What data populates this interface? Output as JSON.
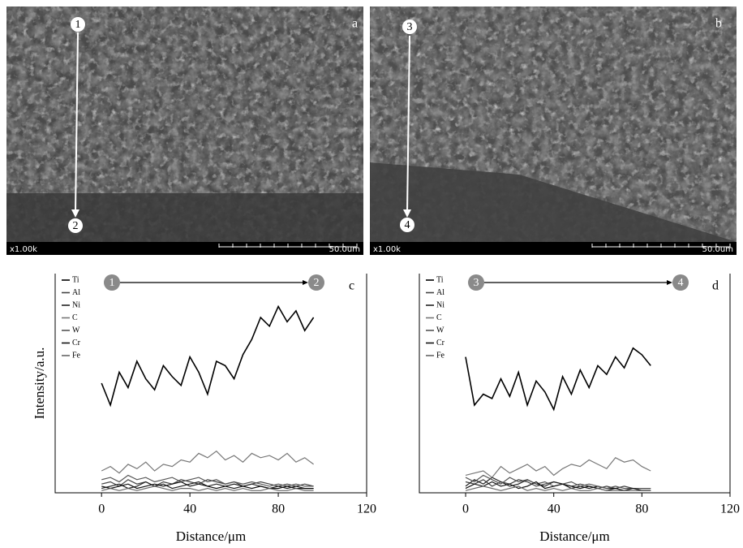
{
  "micrographs": [
    {
      "panel": "a",
      "start": "1",
      "end": "2",
      "magnification": "x1.00k",
      "scale": "50.0um"
    },
    {
      "panel": "b",
      "start": "3",
      "end": "4",
      "magnification": "x1.00k",
      "scale": "50.0um"
    }
  ],
  "chart_data": [
    {
      "type": "line",
      "panel": "c",
      "start_marker": "1",
      "end_marker": "2",
      "ylabel": "Intensity/a.u.",
      "xlabel": "Distance/μm",
      "xlim": [
        -21,
        120
      ],
      "xticks": [
        0,
        40,
        80,
        120
      ],
      "ylim": [
        0,
        100
      ],
      "x": [
        0,
        4,
        8,
        12,
        16,
        20,
        24,
        28,
        32,
        36,
        40,
        44,
        48,
        52,
        56,
        60,
        64,
        68,
        72,
        76,
        80,
        84,
        88,
        92,
        96
      ],
      "series": [
        {
          "name": "Ti",
          "color": "#000000",
          "values": [
            50,
            40,
            55,
            48,
            60,
            52,
            47,
            58,
            53,
            49,
            62,
            55,
            45,
            60,
            58,
            52,
            63,
            70,
            80,
            76,
            85,
            78,
            83,
            74,
            80
          ]
        },
        {
          "name": "Al",
          "color": "#444444",
          "values": [
            4,
            5,
            3,
            6,
            4,
            5,
            3,
            5,
            4,
            6,
            5,
            4,
            6,
            5,
            4,
            5,
            3,
            4,
            5,
            4,
            3,
            4,
            3,
            4,
            3
          ]
        },
        {
          "name": "Ni",
          "color": "#222222",
          "values": [
            2,
            3,
            4,
            2,
            3,
            5,
            3,
            4,
            2,
            3,
            4,
            5,
            3,
            4,
            3,
            2,
            3,
            4,
            3,
            2,
            3,
            2,
            3,
            2,
            2
          ]
        },
        {
          "name": "C",
          "color": "#777777",
          "values": [
            10,
            12,
            9,
            13,
            11,
            14,
            10,
            13,
            12,
            15,
            14,
            18,
            16,
            19,
            15,
            17,
            14,
            18,
            16,
            17,
            15,
            18,
            14,
            16,
            13
          ]
        },
        {
          "name": "W",
          "color": "#555555",
          "values": [
            6,
            7,
            5,
            8,
            6,
            7,
            5,
            6,
            7,
            5,
            6,
            7,
            5,
            6,
            4,
            5,
            4,
            5,
            4,
            3,
            4,
            3,
            4,
            3,
            3
          ]
        },
        {
          "name": "Cr",
          "color": "#111111",
          "values": [
            3,
            2,
            3,
            4,
            2,
            3,
            4,
            3,
            4,
            5,
            3,
            4,
            3,
            2,
            3,
            4,
            3,
            2,
            3,
            2,
            2,
            3,
            2,
            2,
            2
          ]
        },
        {
          "name": "Fe",
          "color": "#666666",
          "values": [
            1,
            2,
            1,
            2,
            1,
            2,
            3,
            2,
            1,
            2,
            2,
            1,
            2,
            1,
            2,
            1,
            2,
            1,
            1,
            2,
            1,
            1,
            2,
            1,
            1
          ]
        }
      ]
    },
    {
      "type": "line",
      "panel": "d",
      "start_marker": "3",
      "end_marker": "4",
      "xlabel": "Distance/μm",
      "xlim": [
        -21,
        120
      ],
      "xticks": [
        0,
        40,
        80,
        120
      ],
      "ylim": [
        0,
        100
      ],
      "x": [
        0,
        4,
        8,
        12,
        16,
        20,
        24,
        28,
        32,
        36,
        40,
        44,
        48,
        52,
        56,
        60,
        64,
        68,
        72,
        76,
        80,
        84
      ],
      "series": [
        {
          "name": "Ti",
          "color": "#000000",
          "values": [
            62,
            40,
            45,
            43,
            52,
            44,
            55,
            40,
            51,
            46,
            38,
            53,
            45,
            56,
            48,
            58,
            54,
            62,
            57,
            66,
            63,
            58
          ]
        },
        {
          "name": "Al",
          "color": "#444444",
          "values": [
            5,
            4,
            6,
            3,
            5,
            4,
            6,
            5,
            3,
            4,
            5,
            4,
            3,
            4,
            3,
            2,
            3,
            2,
            3,
            2,
            2,
            2
          ]
        },
        {
          "name": "Ni",
          "color": "#222222",
          "values": [
            3,
            6,
            4,
            7,
            5,
            3,
            4,
            6,
            4,
            3,
            5,
            4,
            2,
            3,
            2,
            3,
            2,
            2,
            1,
            2,
            1,
            1
          ]
        },
        {
          "name": "C",
          "color": "#777777",
          "values": [
            8,
            9,
            10,
            7,
            12,
            9,
            11,
            13,
            10,
            12,
            8,
            11,
            13,
            12,
            15,
            13,
            11,
            16,
            14,
            15,
            12,
            10
          ]
        },
        {
          "name": "W",
          "color": "#555555",
          "values": [
            7,
            5,
            8,
            6,
            4,
            7,
            5,
            6,
            4,
            5,
            3,
            4,
            5,
            3,
            4,
            3,
            2,
            3,
            2,
            2,
            2,
            2
          ]
        },
        {
          "name": "Cr",
          "color": "#111111",
          "values": [
            2,
            4,
            3,
            5,
            3,
            4,
            2,
            3,
            5,
            2,
            3,
            4,
            3,
            2,
            3,
            2,
            1,
            2,
            1,
            2,
            1,
            1
          ]
        },
        {
          "name": "Fe",
          "color": "#666666",
          "values": [
            1,
            2,
            3,
            2,
            1,
            2,
            3,
            1,
            2,
            1,
            2,
            1,
            2,
            1,
            1,
            2,
            1,
            1,
            1,
            1,
            1,
            1
          ]
        }
      ]
    }
  ]
}
